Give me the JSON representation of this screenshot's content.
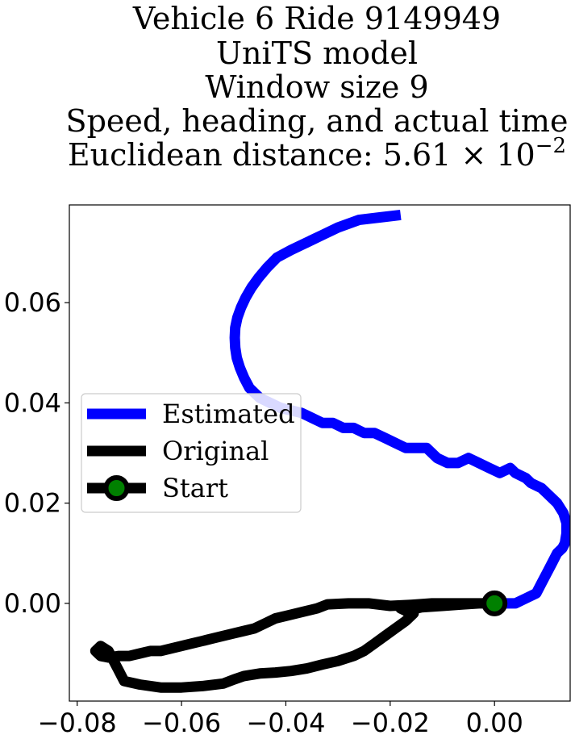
{
  "chart_data": {
    "type": "line",
    "title_lines": [
      "Vehicle 6 Ride 9149949",
      "UniTS model",
      "Window size 9",
      "Speed, heading, and actual time",
      "Euclidean distance: 5.61 × 10"
    ],
    "title_exponent": "−2",
    "xlabel": "",
    "ylabel": "",
    "xlim": [
      -0.0815,
      0.0145
    ],
    "ylim": [
      -0.0195,
      0.0795
    ],
    "xticks": [
      -0.08,
      -0.06,
      -0.04,
      -0.02,
      0.0
    ],
    "xtick_labels": [
      "−0.08",
      "−0.06",
      "−0.04",
      "−0.02",
      "0.00"
    ],
    "yticks": [
      0.0,
      0.02,
      0.04,
      0.06
    ],
    "ytick_labels": [
      "0.00",
      "0.02",
      "0.04",
      "0.06"
    ],
    "grid": false,
    "legend_position": "center-left",
    "series": [
      {
        "name": "Estimated",
        "color": "#0000ff",
        "points": [
          [
            0,
            0
          ],
          [
            0.002,
            0
          ],
          [
            0.004,
            0
          ],
          [
            0.006,
            0.001
          ],
          [
            0.008,
            0.002
          ],
          [
            0.009,
            0.004
          ],
          [
            0.01,
            0.006
          ],
          [
            0.011,
            0.008
          ],
          [
            0.012,
            0.01
          ],
          [
            0.013,
            0.011
          ],
          [
            0.0135,
            0.012
          ],
          [
            0.0138,
            0.014
          ],
          [
            0.0138,
            0.016
          ],
          [
            0.0132,
            0.018
          ],
          [
            0.012,
            0.02
          ],
          [
            0.011,
            0.021
          ],
          [
            0.01,
            0.022
          ],
          [
            0.009,
            0.023
          ],
          [
            0.007,
            0.024
          ],
          [
            0.006,
            0.025
          ],
          [
            0.004,
            0.026
          ],
          [
            0.003,
            0.027
          ],
          [
            0.001,
            0.026
          ],
          [
            -0.001,
            0.027
          ],
          [
            -0.003,
            0.028
          ],
          [
            -0.005,
            0.029
          ],
          [
            -0.007,
            0.028
          ],
          [
            -0.009,
            0.028
          ],
          [
            -0.011,
            0.029
          ],
          [
            -0.013,
            0.031
          ],
          [
            -0.015,
            0.031
          ],
          [
            -0.017,
            0.031
          ],
          [
            -0.019,
            0.032
          ],
          [
            -0.021,
            0.033
          ],
          [
            -0.023,
            0.034
          ],
          [
            -0.025,
            0.034
          ],
          [
            -0.027,
            0.035
          ],
          [
            -0.029,
            0.035
          ],
          [
            -0.031,
            0.036
          ],
          [
            -0.033,
            0.036
          ],
          [
            -0.035,
            0.037
          ],
          [
            -0.037,
            0.038
          ],
          [
            -0.039,
            0.0385
          ],
          [
            -0.041,
            0.039
          ],
          [
            -0.043,
            0.04
          ],
          [
            -0.045,
            0.041
          ],
          [
            -0.046,
            0.042
          ],
          [
            -0.047,
            0.043
          ],
          [
            -0.048,
            0.045
          ],
          [
            -0.0488,
            0.047
          ],
          [
            -0.0494,
            0.049
          ],
          [
            -0.0497,
            0.051
          ],
          [
            -0.0498,
            0.053
          ],
          [
            -0.0497,
            0.055
          ],
          [
            -0.0493,
            0.057
          ],
          [
            -0.0486,
            0.059
          ],
          [
            -0.0477,
            0.061
          ],
          [
            -0.0466,
            0.063
          ],
          [
            -0.0452,
            0.065
          ],
          [
            -0.0436,
            0.067
          ],
          [
            -0.0417,
            0.069
          ],
          [
            -0.039,
            0.0705
          ],
          [
            -0.036,
            0.072
          ],
          [
            -0.033,
            0.0735
          ],
          [
            -0.03,
            0.075
          ],
          [
            -0.026,
            0.0765
          ],
          [
            -0.022,
            0.077
          ],
          [
            -0.018,
            0.0775
          ]
        ]
      },
      {
        "name": "Original",
        "color": "#000000",
        "points": [
          [
            0,
            0
          ],
          [
            -0.004,
            0
          ],
          [
            -0.008,
            0
          ],
          [
            -0.012,
            0
          ],
          [
            -0.016,
            -0.0003
          ],
          [
            -0.02,
            -0.0005
          ],
          [
            -0.024,
            0
          ],
          [
            -0.028,
            0
          ],
          [
            -0.032,
            -0.0002
          ],
          [
            -0.034,
            -0.001
          ],
          [
            -0.036,
            -0.0015
          ],
          [
            -0.038,
            -0.002
          ],
          [
            -0.04,
            -0.0025
          ],
          [
            -0.042,
            -0.003
          ],
          [
            -0.044,
            -0.004
          ],
          [
            -0.046,
            -0.005
          ],
          [
            -0.048,
            -0.0055
          ],
          [
            -0.05,
            -0.006
          ],
          [
            -0.052,
            -0.0065
          ],
          [
            -0.054,
            -0.007
          ],
          [
            -0.056,
            -0.0075
          ],
          [
            -0.058,
            -0.008
          ],
          [
            -0.06,
            -0.0085
          ],
          [
            -0.062,
            -0.009
          ],
          [
            -0.064,
            -0.0095
          ],
          [
            -0.066,
            -0.0095
          ],
          [
            -0.068,
            -0.01
          ],
          [
            -0.07,
            -0.0105
          ],
          [
            -0.072,
            -0.0105
          ],
          [
            -0.074,
            -0.0108
          ],
          [
            -0.0755,
            -0.0105
          ],
          [
            -0.0765,
            -0.0095
          ],
          [
            -0.0755,
            -0.0085
          ],
          [
            -0.074,
            -0.0095
          ],
          [
            -0.073,
            -0.0115
          ],
          [
            -0.072,
            -0.0135
          ],
          [
            -0.071,
            -0.0155
          ],
          [
            -0.068,
            -0.0162
          ],
          [
            -0.064,
            -0.0168
          ],
          [
            -0.06,
            -0.0168
          ],
          [
            -0.056,
            -0.0165
          ],
          [
            -0.052,
            -0.016
          ],
          [
            -0.05,
            -0.0152
          ],
          [
            -0.048,
            -0.0145
          ],
          [
            -0.045,
            -0.014
          ],
          [
            -0.042,
            -0.0138
          ],
          [
            -0.039,
            -0.0135
          ],
          [
            -0.036,
            -0.013
          ],
          [
            -0.033,
            -0.0122
          ],
          [
            -0.03,
            -0.0115
          ],
          [
            -0.027,
            -0.0105
          ],
          [
            -0.025,
            -0.0095
          ],
          [
            -0.023,
            -0.008
          ],
          [
            -0.021,
            -0.0065
          ],
          [
            -0.019,
            -0.005
          ],
          [
            -0.017,
            -0.0035
          ],
          [
            -0.0155,
            -0.002
          ],
          [
            -0.0165,
            -0.0008
          ],
          [
            -0.018,
            -0.001
          ],
          [
            -0.017,
            -0.0015
          ],
          [
            -0.014,
            -0.0008
          ],
          [
            -0.01,
            -0.0005
          ],
          [
            -0.006,
            -0.0002
          ],
          [
            -0.003,
            0
          ],
          [
            0,
            0
          ]
        ]
      }
    ],
    "start_marker": {
      "name": "Start",
      "x": 0.0,
      "y": 0.0,
      "face_color": "#008000",
      "edge_color": "#000000"
    }
  }
}
